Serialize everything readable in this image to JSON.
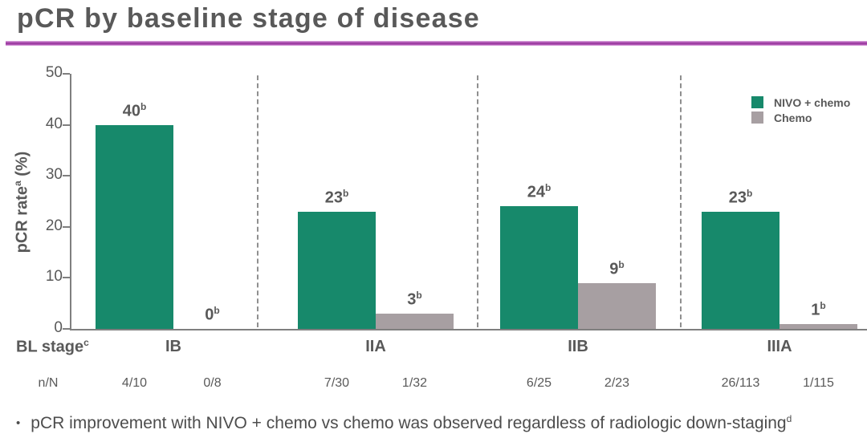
{
  "header": {
    "title": "pCR by baseline stage of disease"
  },
  "chart_data": {
    "type": "bar",
    "title": "pCR by baseline stage of disease",
    "ylabel": {
      "text": "pCR rate",
      "sup": "a",
      "suffix": " (%)"
    },
    "ylim": [
      0,
      50
    ],
    "yticks": [
      0,
      10,
      20,
      30,
      40,
      50
    ],
    "grid": false,
    "legend_position": "top-right",
    "categories": [
      "IB",
      "IIA",
      "IIB",
      "IIIA"
    ],
    "x_axis_label": {
      "text": "BL stage",
      "sup": "c"
    },
    "n_row_label": "n/N",
    "value_label_sup": "b",
    "series": [
      {
        "name": "NIVO + chemo",
        "color": "#17896b",
        "values": [
          40,
          23,
          24,
          23
        ],
        "n_N": [
          "4/10",
          "7/30",
          "6/25",
          "26/113"
        ]
      },
      {
        "name": "Chemo",
        "color": "#a79fa2",
        "values": [
          0,
          3,
          9,
          1
        ],
        "n_N": [
          "0/8",
          "1/32",
          "2/23",
          "1/115"
        ]
      }
    ],
    "colors": {
      "axis": "#7f7f7f",
      "label_text": "#595959",
      "divider": "#8f8f8f"
    }
  },
  "footer": {
    "bullet": "•",
    "text": "pCR improvement with NIVO + chemo vs chemo was observed regardless of radiologic down-staging",
    "sup": "d"
  },
  "theme": {
    "accent_underline": "#96379b",
    "title_color": "#595959"
  }
}
